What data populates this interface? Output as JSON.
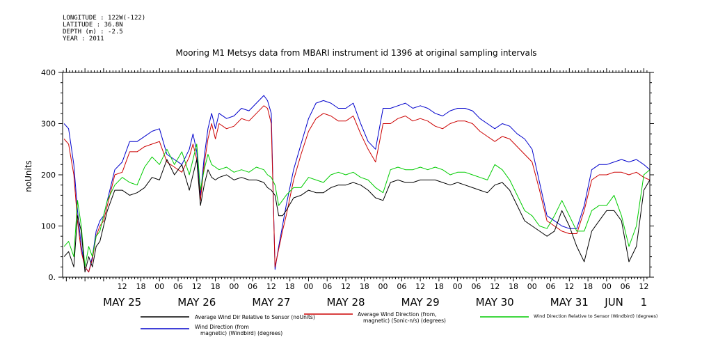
{
  "header": {
    "longitude": "LONGITUDE : 122W(-122)",
    "latitude": "LATITUDE : 36.8N",
    "depth": "DEPTH (m) : -2.5",
    "year": "YEAR : 2011"
  },
  "chart_data": {
    "type": "line",
    "title": "Mooring M1 Metsys data from MBARI instrument id 1396 at original sampling intervals",
    "ylabel": "noUnits",
    "ylim": [
      0,
      400
    ],
    "yticks": [
      0,
      100,
      200,
      300,
      400
    ],
    "ytick_labels": [
      "0.",
      "100",
      "200",
      "300",
      "400"
    ],
    "xlim": [
      -0.3,
      7.58
    ],
    "x_units": "days since May 25 2011 00:00",
    "hour_ticks": [
      {
        "x": 0.5,
        "label": "12"
      },
      {
        "x": 0.75,
        "label": "18"
      },
      {
        "x": 1.0,
        "label": "00"
      },
      {
        "x": 1.25,
        "label": "06"
      },
      {
        "x": 1.5,
        "label": "12"
      },
      {
        "x": 1.75,
        "label": "18"
      },
      {
        "x": 2.0,
        "label": "00"
      },
      {
        "x": 2.25,
        "label": "06"
      },
      {
        "x": 2.5,
        "label": "12"
      },
      {
        "x": 2.75,
        "label": "18"
      },
      {
        "x": 3.0,
        "label": "00"
      },
      {
        "x": 3.25,
        "label": "06"
      },
      {
        "x": 3.5,
        "label": "12"
      },
      {
        "x": 3.75,
        "label": "18"
      },
      {
        "x": 4.0,
        "label": "00"
      },
      {
        "x": 4.25,
        "label": "06"
      },
      {
        "x": 4.5,
        "label": "12"
      },
      {
        "x": 4.75,
        "label": "18"
      },
      {
        "x": 5.0,
        "label": "00"
      },
      {
        "x": 5.25,
        "label": "06"
      },
      {
        "x": 5.5,
        "label": "12"
      },
      {
        "x": 5.75,
        "label": "18"
      },
      {
        "x": 6.0,
        "label": "00"
      },
      {
        "x": 6.25,
        "label": "06"
      },
      {
        "x": 6.5,
        "label": "12"
      },
      {
        "x": 6.75,
        "label": "18"
      },
      {
        "x": 7.0,
        "label": "00"
      },
      {
        "x": 7.25,
        "label": "06"
      },
      {
        "x": 7.5,
        "label": "12"
      }
    ],
    "date_ticks": [
      {
        "x": 0.5,
        "label": "MAY 25"
      },
      {
        "x": 1.5,
        "label": "MAY 26"
      },
      {
        "x": 2.5,
        "label": "MAY 27"
      },
      {
        "x": 3.5,
        "label": "MAY 28"
      },
      {
        "x": 4.5,
        "label": "MAY 29"
      },
      {
        "x": 5.5,
        "label": "MAY 30"
      },
      {
        "x": 6.5,
        "label": "MAY 31"
      },
      {
        "x": 7.1,
        "label": "JUN"
      },
      {
        "x": 7.5,
        "label": "1"
      }
    ],
    "series": [
      {
        "name": "Wind Direction (from, magnetic) (Windbird) (degrees)",
        "legend_lines": [
          "Wind Direction (from",
          "magnetic) (Windbird) (degrees)"
        ],
        "color": "#0000cc",
        "x": [
          -0.28,
          -0.22,
          -0.15,
          -0.1,
          -0.05,
          0.0,
          0.05,
          0.1,
          0.15,
          0.2,
          0.25,
          0.3,
          0.4,
          0.5,
          0.6,
          0.7,
          0.8,
          0.9,
          1.0,
          1.1,
          1.2,
          1.3,
          1.4,
          1.45,
          1.5,
          1.55,
          1.6,
          1.65,
          1.7,
          1.75,
          1.8,
          1.9,
          2.0,
          2.1,
          2.2,
          2.3,
          2.4,
          2.45,
          2.5,
          2.55,
          2.6,
          2.65,
          2.7,
          2.8,
          2.9,
          3.0,
          3.1,
          3.2,
          3.3,
          3.4,
          3.5,
          3.6,
          3.7,
          3.8,
          3.9,
          4.0,
          4.1,
          4.2,
          4.3,
          4.4,
          4.5,
          4.6,
          4.7,
          4.8,
          4.9,
          5.0,
          5.1,
          5.2,
          5.3,
          5.4,
          5.5,
          5.6,
          5.7,
          5.8,
          5.9,
          6.0,
          6.1,
          6.2,
          6.3,
          6.4,
          6.5,
          6.6,
          6.7,
          6.8,
          6.9,
          7.0,
          7.1,
          7.2,
          7.3,
          7.4,
          7.5,
          7.58
        ],
        "y": [
          300,
          290,
          220,
          130,
          60,
          20,
          10,
          40,
          90,
          110,
          120,
          150,
          210,
          225,
          265,
          265,
          275,
          285,
          290,
          240,
          230,
          220,
          250,
          280,
          245,
          160,
          235,
          290,
          320,
          290,
          320,
          310,
          315,
          330,
          325,
          340,
          355,
          345,
          320,
          15,
          60,
          100,
          140,
          210,
          260,
          310,
          340,
          345,
          340,
          330,
          330,
          340,
          300,
          265,
          250,
          330,
          330,
          335,
          340,
          330,
          335,
          330,
          320,
          315,
          325,
          330,
          330,
          325,
          310,
          300,
          290,
          300,
          295,
          280,
          270,
          250,
          185,
          120,
          110,
          100,
          95,
          95,
          140,
          210,
          220,
          220,
          225,
          230,
          225,
          230,
          220,
          210
        ]
      },
      {
        "name": "Average Wind Direction (from, magnetic) (Sonic-n/s) (degrees)",
        "legend_lines": [
          "Average Wind Direction (from,",
          "magnetic) (Sonic-n/s) (degrees)"
        ],
        "color": "#cc0000",
        "x": [
          -0.28,
          -0.22,
          -0.15,
          -0.1,
          -0.05,
          0.0,
          0.05,
          0.1,
          0.15,
          0.2,
          0.25,
          0.3,
          0.4,
          0.5,
          0.6,
          0.7,
          0.8,
          0.9,
          1.0,
          1.1,
          1.2,
          1.3,
          1.4,
          1.45,
          1.5,
          1.55,
          1.6,
          1.65,
          1.7,
          1.75,
          1.8,
          1.9,
          2.0,
          2.1,
          2.2,
          2.3,
          2.4,
          2.45,
          2.5,
          2.55,
          2.6,
          2.65,
          2.7,
          2.8,
          2.9,
          3.0,
          3.1,
          3.2,
          3.3,
          3.4,
          3.5,
          3.6,
          3.7,
          3.8,
          3.9,
          4.0,
          4.1,
          4.2,
          4.3,
          4.4,
          4.5,
          4.6,
          4.7,
          4.8,
          4.9,
          5.0,
          5.1,
          5.2,
          5.3,
          5.4,
          5.5,
          5.6,
          5.7,
          5.8,
          5.9,
          6.0,
          6.1,
          6.2,
          6.3,
          6.4,
          6.5,
          6.6,
          6.7,
          6.8,
          6.9,
          7.0,
          7.1,
          7.2,
          7.3,
          7.4,
          7.5,
          7.58
        ],
        "y": [
          270,
          260,
          200,
          110,
          50,
          20,
          10,
          35,
          80,
          100,
          110,
          140,
          200,
          205,
          245,
          245,
          255,
          260,
          265,
          225,
          215,
          205,
          235,
          260,
          230,
          150,
          220,
          270,
          300,
          270,
          300,
          290,
          295,
          310,
          305,
          320,
          335,
          330,
          300,
          20,
          55,
          90,
          120,
          190,
          240,
          285,
          310,
          320,
          315,
          305,
          305,
          315,
          280,
          250,
          225,
          300,
          300,
          310,
          315,
          305,
          310,
          305,
          295,
          290,
          300,
          305,
          305,
          300,
          285,
          275,
          265,
          275,
          270,
          255,
          240,
          225,
          170,
          110,
          100,
          90,
          85,
          85,
          130,
          190,
          200,
          200,
          205,
          205,
          200,
          205,
          195,
          190
        ]
      },
      {
        "name": "Wind Direction Relative to Sensor (Windbird) (degrees)",
        "legend_lines": [
          "Wind Direction Relative to Sensor (Windbird) (degrees)"
        ],
        "color": "#00cc00",
        "x": [
          -0.28,
          -0.22,
          -0.15,
          -0.1,
          -0.05,
          0.0,
          0.05,
          0.1,
          0.15,
          0.2,
          0.25,
          0.3,
          0.4,
          0.5,
          0.6,
          0.7,
          0.8,
          0.9,
          1.0,
          1.1,
          1.2,
          1.3,
          1.4,
          1.45,
          1.5,
          1.55,
          1.6,
          1.65,
          1.7,
          1.75,
          1.8,
          1.9,
          2.0,
          2.1,
          2.2,
          2.3,
          2.4,
          2.45,
          2.5,
          2.55,
          2.6,
          2.65,
          2.7,
          2.8,
          2.9,
          3.0,
          3.1,
          3.2,
          3.3,
          3.4,
          3.5,
          3.6,
          3.7,
          3.8,
          3.9,
          4.0,
          4.1,
          4.2,
          4.3,
          4.4,
          4.5,
          4.6,
          4.7,
          4.8,
          4.9,
          5.0,
          5.1,
          5.2,
          5.3,
          5.4,
          5.5,
          5.6,
          5.7,
          5.8,
          5.9,
          6.0,
          6.1,
          6.2,
          6.3,
          6.4,
          6.5,
          6.6,
          6.7,
          6.8,
          6.9,
          7.0,
          7.1,
          7.2,
          7.3,
          7.4,
          7.5,
          7.58
        ],
        "y": [
          60,
          70,
          40,
          150,
          100,
          20,
          60,
          40,
          80,
          90,
          120,
          150,
          180,
          195,
          185,
          180,
          215,
          235,
          220,
          250,
          220,
          245,
          200,
          230,
          260,
          170,
          210,
          240,
          220,
          215,
          210,
          215,
          205,
          210,
          205,
          215,
          210,
          200,
          195,
          180,
          140,
          150,
          160,
          175,
          175,
          195,
          190,
          185,
          200,
          205,
          200,
          205,
          195,
          190,
          175,
          165,
          210,
          215,
          210,
          210,
          215,
          210,
          215,
          210,
          200,
          205,
          205,
          200,
          195,
          190,
          220,
          210,
          190,
          160,
          130,
          120,
          100,
          95,
          120,
          150,
          120,
          90,
          90,
          130,
          140,
          140,
          160,
          120,
          60,
          100,
          200,
          210
        ]
      },
      {
        "name": "Average Wind Dir Relative to Sensor (noUnits)",
        "legend_lines": [
          "Average Wind Dir Relative to Sensor (noUnits)"
        ],
        "color": "#000000",
        "x": [
          -0.28,
          -0.22,
          -0.15,
          -0.1,
          -0.05,
          0.0,
          0.05,
          0.1,
          0.15,
          0.2,
          0.25,
          0.3,
          0.4,
          0.5,
          0.6,
          0.7,
          0.8,
          0.9,
          1.0,
          1.1,
          1.2,
          1.3,
          1.4,
          1.45,
          1.5,
          1.55,
          1.6,
          1.65,
          1.7,
          1.75,
          1.8,
          1.9,
          2.0,
          2.1,
          2.2,
          2.3,
          2.4,
          2.45,
          2.5,
          2.55,
          2.6,
          2.65,
          2.7,
          2.8,
          2.9,
          3.0,
          3.1,
          3.2,
          3.3,
          3.4,
          3.5,
          3.6,
          3.7,
          3.8,
          3.9,
          4.0,
          4.1,
          4.2,
          4.3,
          4.4,
          4.5,
          4.6,
          4.7,
          4.8,
          4.9,
          5.0,
          5.1,
          5.2,
          5.3,
          5.4,
          5.5,
          5.6,
          5.7,
          5.8,
          5.9,
          6.0,
          6.1,
          6.2,
          6.3,
          6.4,
          6.5,
          6.6,
          6.7,
          6.8,
          6.9,
          7.0,
          7.1,
          7.2,
          7.3,
          7.4,
          7.5,
          7.58
        ],
        "y": [
          40,
          50,
          20,
          120,
          90,
          10,
          40,
          20,
          60,
          70,
          100,
          130,
          170,
          170,
          160,
          165,
          175,
          195,
          190,
          230,
          200,
          220,
          170,
          200,
          230,
          140,
          180,
          210,
          195,
          190,
          195,
          200,
          190,
          195,
          190,
          190,
          185,
          175,
          170,
          160,
          120,
          120,
          130,
          155,
          160,
          170,
          165,
          165,
          175,
          180,
          180,
          185,
          180,
          170,
          155,
          150,
          185,
          190,
          185,
          185,
          190,
          190,
          190,
          185,
          180,
          185,
          180,
          175,
          170,
          165,
          180,
          185,
          170,
          140,
          110,
          100,
          90,
          80,
          90,
          130,
          100,
          60,
          30,
          90,
          110,
          130,
          130,
          110,
          30,
          60,
          170,
          190
        ]
      }
    ]
  }
}
